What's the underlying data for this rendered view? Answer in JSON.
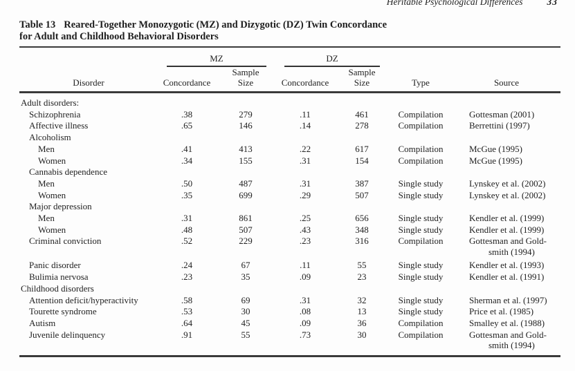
{
  "page": {
    "running_head": "Heritable Psychological Differences",
    "page_number": "33"
  },
  "table": {
    "label": "Table 13",
    "title_line1": "Reared-Together Monozygotic (MZ) and Dizygotic (DZ) Twin Concordance",
    "title_line2": "for Adult and Childhood Behavioral Disorders",
    "headers": {
      "disorder": "Disorder",
      "mz_group": "MZ",
      "dz_group": "DZ",
      "concordance": "Concordance",
      "sample_size": "Sample\nSize",
      "type": "Type",
      "source": "Source"
    },
    "rows": [
      {
        "indent": 0,
        "label": "Adult disorders:"
      },
      {
        "indent": 1,
        "label": "Schizophrenia",
        "mz_concordance": ".38",
        "mz_sample": "279",
        "dz_concordance": ".11",
        "dz_sample": "461",
        "type": "Compilation",
        "source": "Gottesman (2001)"
      },
      {
        "indent": 1,
        "label": "Affective illness",
        "mz_concordance": ".65",
        "mz_sample": "146",
        "dz_concordance": ".14",
        "dz_sample": "278",
        "type": "Compilation",
        "source": "Berrettini (1997)"
      },
      {
        "indent": 1,
        "label": "Alcoholism"
      },
      {
        "indent": 2,
        "label": "Men",
        "mz_concordance": ".41",
        "mz_sample": "413",
        "dz_concordance": ".22",
        "dz_sample": "617",
        "type": "Compilation",
        "source": "McGue (1995)"
      },
      {
        "indent": 2,
        "label": "Women",
        "mz_concordance": ".34",
        "mz_sample": "155",
        "dz_concordance": ".31",
        "dz_sample": "154",
        "type": "Compilation",
        "source": "McGue (1995)"
      },
      {
        "indent": 1,
        "label": "Cannabis dependence"
      },
      {
        "indent": 2,
        "label": "Men",
        "mz_concordance": ".50",
        "mz_sample": "487",
        "dz_concordance": ".31",
        "dz_sample": "387",
        "type": "Single study",
        "source": "Lynskey et al. (2002)"
      },
      {
        "indent": 2,
        "label": "Women",
        "mz_concordance": ".35",
        "mz_sample": "699",
        "dz_concordance": ".29",
        "dz_sample": "507",
        "type": "Single study",
        "source": "Lynskey et al. (2002)"
      },
      {
        "indent": 1,
        "label": "Major depression"
      },
      {
        "indent": 2,
        "label": "Men",
        "mz_concordance": ".31",
        "mz_sample": "861",
        "dz_concordance": ".25",
        "dz_sample": "656",
        "type": "Single study",
        "source": "Kendler et al. (1999)"
      },
      {
        "indent": 2,
        "label": "Women",
        "mz_concordance": ".48",
        "mz_sample": "507",
        "dz_concordance": ".43",
        "dz_sample": "348",
        "type": "Single study",
        "source": "Kendler et al. (1999)"
      },
      {
        "indent": 1,
        "label": "Criminal conviction",
        "mz_concordance": ".52",
        "mz_sample": "229",
        "dz_concordance": ".23",
        "dz_sample": "316",
        "type": "Compilation",
        "source": "Gottesman and Gold-\nsmith (1994)"
      },
      {
        "indent": 1,
        "label": "Panic disorder",
        "mz_concordance": ".24",
        "mz_sample": "67",
        "dz_concordance": ".11",
        "dz_sample": "55",
        "type": "Single study",
        "source": "Kendler et al. (1993)"
      },
      {
        "indent": 1,
        "label": "Bulimia nervosa",
        "mz_concordance": ".23",
        "mz_sample": "35",
        "dz_concordance": ".09",
        "dz_sample": "23",
        "type": "Single study",
        "source": "Kendler et al. (1991)"
      },
      {
        "indent": 0,
        "label": "Childhood disorders"
      },
      {
        "indent": 1,
        "label": "Attention deficit/hyperactivity",
        "mz_concordance": ".58",
        "mz_sample": "69",
        "dz_concordance": ".31",
        "dz_sample": "32",
        "type": "Single study",
        "source": "Sherman et al. (1997)"
      },
      {
        "indent": 1,
        "label": "Tourette syndrome",
        "mz_concordance": ".53",
        "mz_sample": "30",
        "dz_concordance": ".08",
        "dz_sample": "13",
        "type": "Single study",
        "source": "Price et al. (1985)"
      },
      {
        "indent": 1,
        "label": "Autism",
        "mz_concordance": ".64",
        "mz_sample": "45",
        "dz_concordance": ".09",
        "dz_sample": "36",
        "type": "Compilation",
        "source": "Smalley et al. (1988)"
      },
      {
        "indent": 1,
        "label": "Juvenile delinquency",
        "mz_concordance": ".91",
        "mz_sample": "55",
        "dz_concordance": ".73",
        "dz_sample": "30",
        "type": "Compilation",
        "source": "Gottesman and Gold-\nsmith (1994)"
      }
    ]
  }
}
